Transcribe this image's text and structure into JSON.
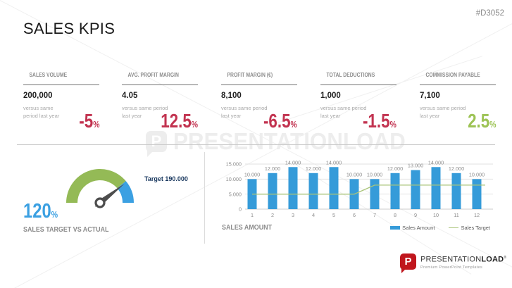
{
  "doc_id": "#D3052",
  "title": "SALES KPIS",
  "colors": {
    "negative_red": "#c23350",
    "positive_green": "#9dc355",
    "accent_blue": "#3ba0e2",
    "bar_blue": "#359bd9",
    "target_line_green": "#a9c478",
    "navy_label": "#17365d",
    "gray_text": "#8c8c8c"
  },
  "kpis": [
    {
      "title": "SALES VOLUME",
      "value": "200,000",
      "note": "versus same\nperiod last year",
      "change": "-5",
      "unit": "%",
      "color": "#c23350"
    },
    {
      "title": "AVG. PROFIT MARGIN",
      "value": "4.05",
      "note": "versus same period\nlast year",
      "change": "12.5",
      "unit": "%",
      "color": "#c23350"
    },
    {
      "title": "PROFIT MARGIN (€)",
      "value": "8,100",
      "note": "versus same period\nlast year",
      "change": "-6.5",
      "unit": "%",
      "color": "#c23350"
    },
    {
      "title": "TOTAL DEDUCTIONS",
      "value": "1,000",
      "note": "versus same period\nlast year",
      "change": "-1.5",
      "unit": "%",
      "color": "#c23350"
    },
    {
      "title": "COMMISSION PAYABLE",
      "value": "7,100",
      "note": "versus same period\nlast year",
      "change": "2.5",
      "unit": "%",
      "color": "#9dc355"
    }
  ],
  "chart_data": [
    {
      "type": "gauge",
      "title": "SALES TARGET VS ACTUAL",
      "value_pct": 120,
      "value_display": "120",
      "unit": "%",
      "target": 190000,
      "target_label": "Target 190.000",
      "segments": [
        {
          "name": "actual",
          "color": "#94ba56",
          "span_deg": 140
        },
        {
          "name": "remainder",
          "color": "#3ba0e2",
          "span_deg": 40
        }
      ],
      "needle_deg": 38,
      "needle_color": "#4d4d4d",
      "value_color": "#3ba0e2"
    },
    {
      "type": "bar",
      "title": "SALES AMOUNT",
      "categories": [
        "1",
        "2",
        "3",
        "4",
        "5",
        "6",
        "7",
        "8",
        "9",
        "10",
        "11",
        "12"
      ],
      "series": [
        {
          "name": "Sales Amount",
          "type": "bar",
          "color": "#359bd9",
          "values": [
            10000,
            12000,
            14000,
            12000,
            14000,
            10000,
            10000,
            12000,
            13000,
            14000,
            12000,
            10000
          ]
        },
        {
          "name": "Sales Target",
          "type": "line",
          "color": "#a9c478",
          "values": [
            5000,
            5000,
            5000,
            5000,
            5000,
            5000,
            8000,
            8000,
            8000,
            8000,
            8000,
            8000
          ]
        }
      ],
      "ylim": [
        0,
        15000
      ],
      "yticks": [
        0,
        5000,
        10000,
        15000
      ],
      "tick_format": "thousands-dot",
      "grid": true,
      "data_labels": true,
      "legend_position": "bottom-right"
    }
  ],
  "watermark": {
    "text": "PRESENTATIONLOAD",
    "icon_letter": "P"
  },
  "footer": {
    "brand_prefix": "PRESENTATION",
    "brand_suffix": "LOAD",
    "registered": "®",
    "tagline": "Premium PowerPoint Templates",
    "icon_letter": "P"
  }
}
